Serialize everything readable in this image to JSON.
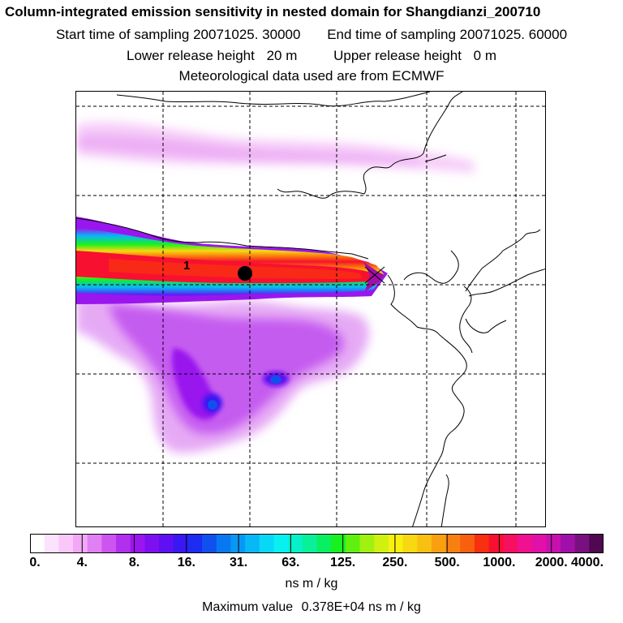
{
  "title": "Column-integrated emission sensitivity in nested domain for Shangdianzi_200710",
  "sampling": {
    "start_label": "Start time of sampling",
    "start_value": "20071025. 30000",
    "end_label": "End time of sampling",
    "end_value": "20071025. 60000"
  },
  "release": {
    "lower_label": "Lower release height",
    "lower_value": "20 m",
    "upper_label": "Upper release height",
    "upper_value": "0 m"
  },
  "met_source": "Meteorological data used are from ECMWF",
  "station_label": "1",
  "colorbar": {
    "tick_labels": [
      "0.",
      "4.",
      "8.",
      "16.",
      "31.",
      "63.",
      "125.",
      "250.",
      "500.",
      "1000.",
      "2000.",
      "4000."
    ],
    "colors": [
      "#ffffff",
      "#fde2fd",
      "#f9c8f9",
      "#f2a8f6",
      "#e080f4",
      "#cc55f0",
      "#b030ee",
      "#9a16ee",
      "#7e10f0",
      "#5e10f2",
      "#3a18f2",
      "#1c2cf2",
      "#1050ee",
      "#0878f0",
      "#0898f4",
      "#08b8f6",
      "#08d8f6",
      "#08f0f0",
      "#08f0c8",
      "#08f098",
      "#08f060",
      "#18f020",
      "#60f010",
      "#a0f010",
      "#d0f010",
      "#f8f010",
      "#f8d810",
      "#f8c010",
      "#f8a010",
      "#f88010",
      "#f86010",
      "#f83010",
      "#f81030",
      "#f81060",
      "#f01090",
      "#e010a8",
      "#c810b0",
      "#a010a8",
      "#781080",
      "#500850"
    ],
    "units": "ns m / kg"
  },
  "max_value": {
    "label": "Maximum value",
    "value": "0.378E+04",
    "units": "ns m / kg"
  },
  "colors": {
    "grid": "#000000",
    "coast": "#000000",
    "station_marker": "#000000"
  }
}
